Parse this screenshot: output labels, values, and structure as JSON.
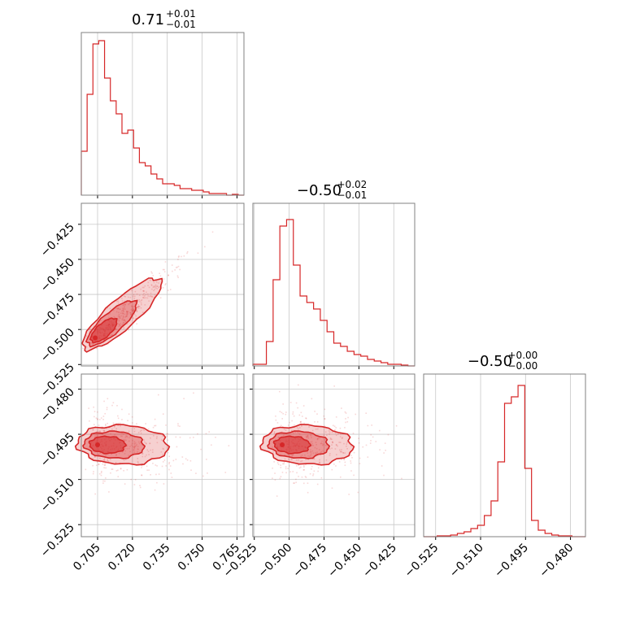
{
  "chart_data": {
    "type": "corner",
    "color": "#d62728",
    "params": [
      {
        "title": {
          "median": "0.71",
          "upper": "+0.01",
          "lower": "−0.01"
        },
        "range": [
          0.698,
          0.768
        ],
        "ticks": [
          0.705,
          0.72,
          0.735,
          0.75,
          0.765
        ],
        "tick_labels": [
          "0.705",
          "0.720",
          "0.735",
          "0.750",
          "0.765"
        ],
        "hist": [
          0.27,
          0.62,
          0.93,
          0.95,
          0.72,
          0.58,
          0.5,
          0.38,
          0.4,
          0.29,
          0.2,
          0.18,
          0.13,
          0.1,
          0.07,
          0.07,
          0.06,
          0.04,
          0.04,
          0.03,
          0.03,
          0.02,
          0.01,
          0.01,
          0.01,
          0.0,
          0.005,
          0.0
        ]
      },
      {
        "title": {
          "median": "−0.50",
          "upper": "+0.02",
          "lower": "−0.01"
        },
        "range": [
          -0.526,
          -0.41
        ],
        "ticks": [
          -0.525,
          -0.5,
          -0.475,
          -0.45,
          -0.425
        ],
        "tick_labels": [
          "−0.525",
          "−0.500",
          "−0.475",
          "−0.450",
          "−0.425"
        ],
        "hist": [
          0.01,
          0.01,
          0.15,
          0.53,
          0.86,
          0.9,
          0.62,
          0.43,
          0.39,
          0.35,
          0.28,
          0.21,
          0.14,
          0.12,
          0.09,
          0.07,
          0.06,
          0.04,
          0.03,
          0.02,
          0.01,
          0.01,
          0.005,
          0.0
        ]
      },
      {
        "title": {
          "median": "−0.50",
          "upper": "+0.00",
          "lower": "−0.00"
        },
        "range": [
          -0.529,
          -0.475
        ],
        "ticks": [
          -0.525,
          -0.51,
          -0.495,
          -0.48
        ],
        "tick_labels": [
          "−0.525",
          "−0.510",
          "−0.495",
          "−0.480"
        ],
        "hist": [
          0.0,
          0.0,
          0.005,
          0.005,
          0.01,
          0.02,
          0.03,
          0.05,
          0.07,
          0.13,
          0.22,
          0.46,
          0.82,
          0.86,
          0.93,
          0.42,
          0.1,
          0.04,
          0.02,
          0.01,
          0.005,
          0.005,
          0.0,
          0.0
        ]
      }
    ],
    "pairs": [
      {
        "x": 0,
        "y": 1,
        "peak": [
          0.704,
          -0.506
        ],
        "corr": 0.95
      },
      {
        "x": 0,
        "y": 2,
        "peak": [
          0.705,
          -0.4985
        ],
        "corr": 0.0
      },
      {
        "x": 1,
        "y": 2,
        "peak": [
          -0.505,
          -0.4985
        ],
        "corr": 0.0
      }
    ],
    "grid": true
  }
}
